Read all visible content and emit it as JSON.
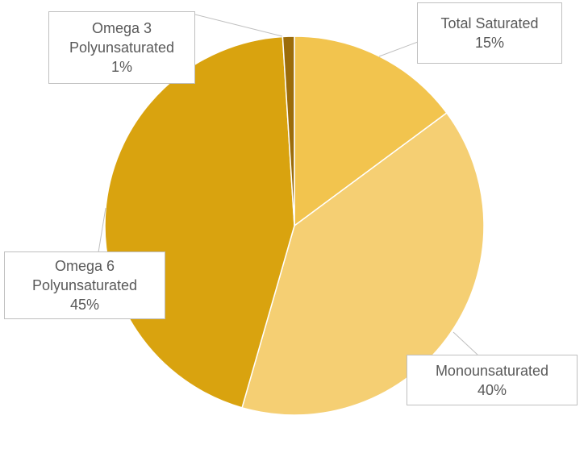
{
  "chart_data": {
    "type": "pie",
    "title": "",
    "start_angle_deg": 0,
    "direction": "clockwise",
    "categories": [
      "Total Saturated",
      "Monounsaturated",
      "Omega 6 Polyunsaturated",
      "Omega 3 Polyunsaturated"
    ],
    "values": [
      15,
      40,
      45,
      1
    ],
    "unit": "%",
    "colors": [
      "#F2C44E",
      "#F5CF73",
      "#D9A30F",
      "#9C6C0A"
    ],
    "data_labels": [
      {
        "name": "Total Saturated",
        "lines": [
          "Total Saturated",
          "15%"
        ]
      },
      {
        "name": "Monounsaturated",
        "lines": [
          "Monounsaturated",
          "40%"
        ]
      },
      {
        "name": "Omega 6 Polyunsaturated",
        "lines": [
          "Omega 6",
          "Polyunsaturated",
          "45%"
        ]
      },
      {
        "name": "Omega 3 Polyunsaturated",
        "lines": [
          "Omega 3",
          "Polyunsaturated",
          "1%"
        ]
      }
    ],
    "legend": "none"
  },
  "labels": {
    "total_saturated": {
      "line1": "Total Saturated",
      "line2": "15%"
    },
    "monounsaturated": {
      "line1": "Monounsaturated",
      "line2": "40%"
    },
    "omega6": {
      "line1": "Omega 6",
      "line2": "Polyunsaturated",
      "line3": "45%"
    },
    "omega3": {
      "line1": "Omega 3",
      "line2": "Polyunsaturated",
      "line3": "1%"
    }
  }
}
